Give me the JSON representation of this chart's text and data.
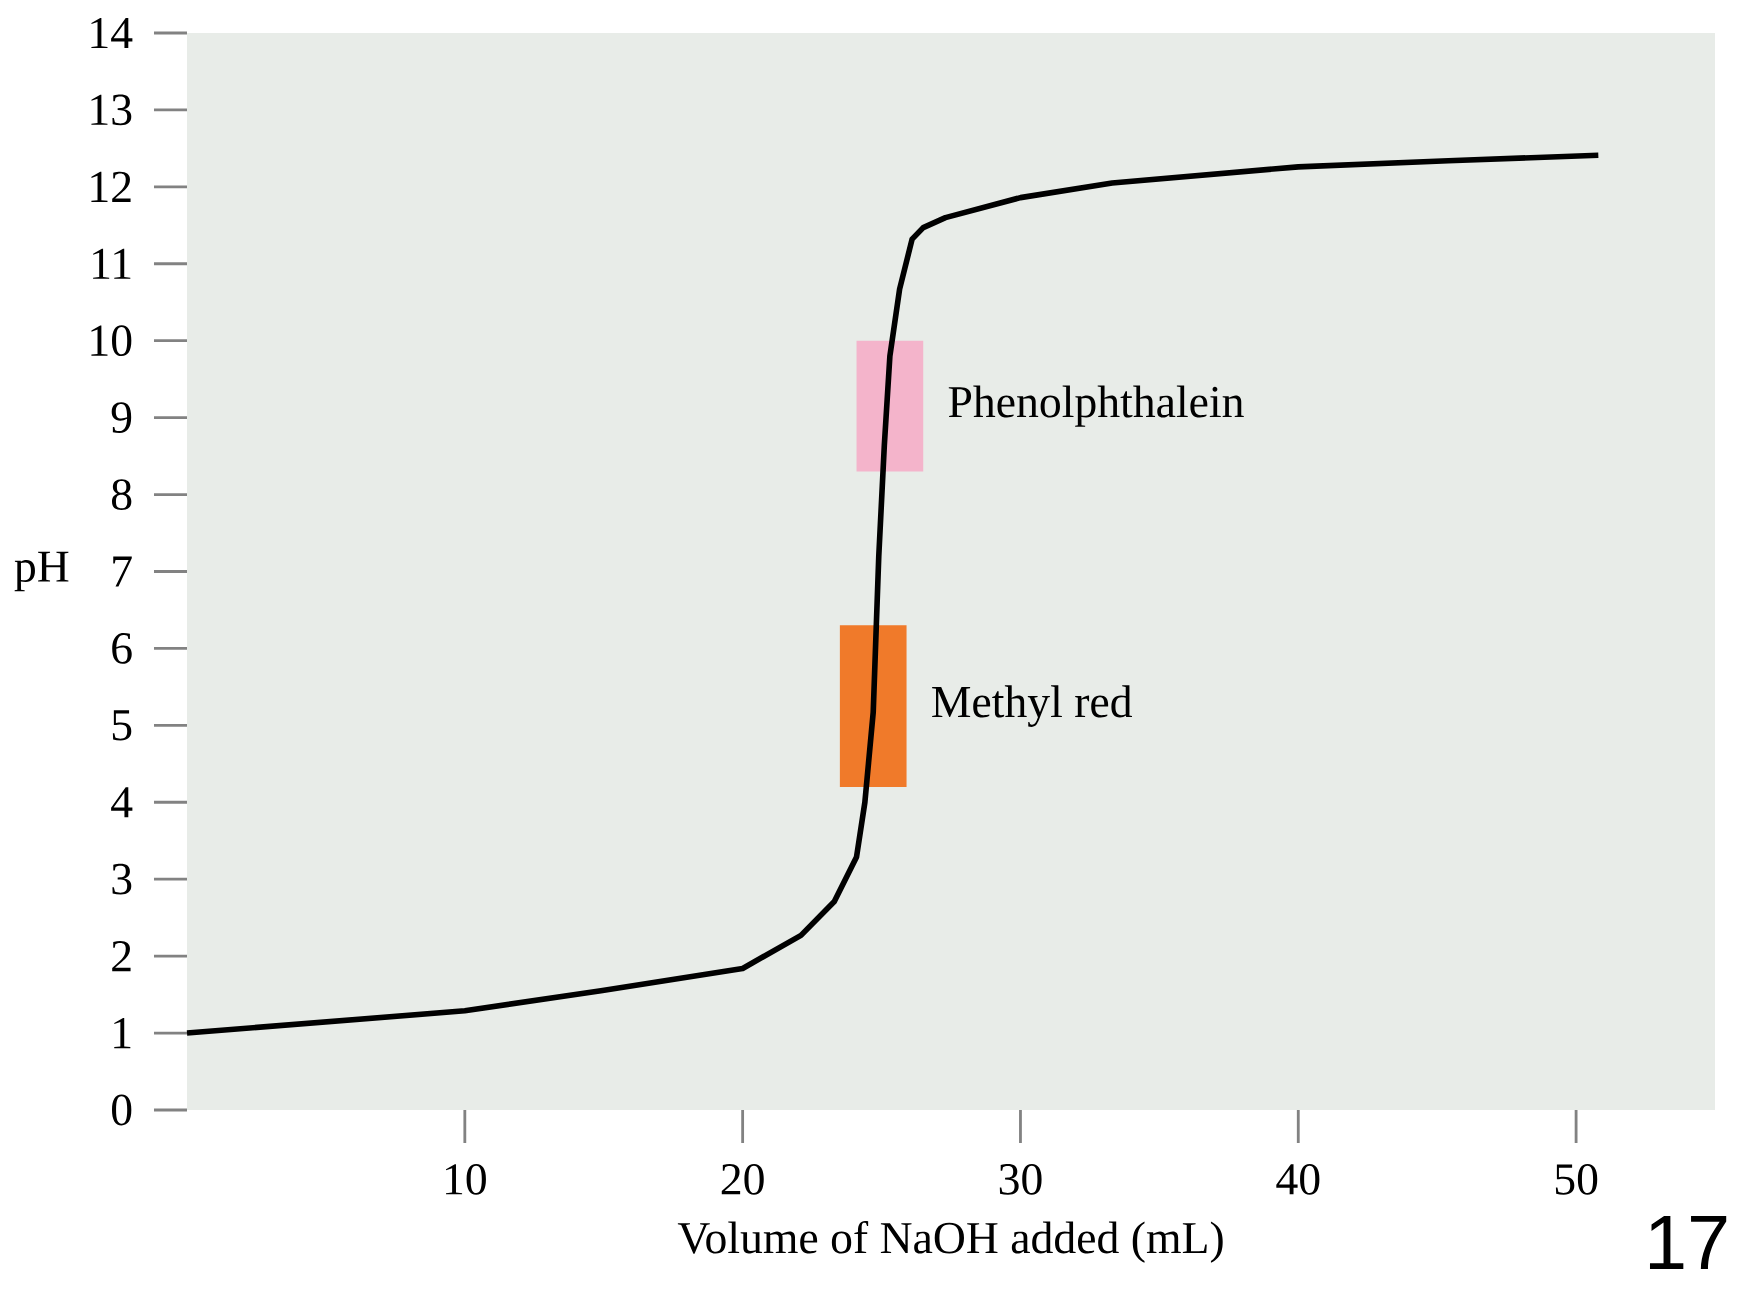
{
  "chart_data": {
    "type": "line",
    "xlabel": "Volume of NaOH added (mL)",
    "ylabel": "pH",
    "x": [
      0,
      10,
      14.9,
      20,
      22.1,
      23.3,
      24.1,
      24.4,
      24.7,
      24.9,
      25.1,
      25.3,
      25.65,
      26.1,
      26.5,
      27.3,
      30,
      33.3,
      40,
      45.4,
      50.8
    ],
    "series": [
      {
        "color": "#000000",
        "values": [
          1.0,
          1.29,
          1.55,
          1.84,
          2.27,
          2.71,
          3.29,
          4.0,
          5.17,
          7.2,
          8.64,
          9.8,
          10.67,
          11.32,
          11.47,
          11.6,
          11.86,
          12.05,
          12.26,
          12.34,
          12.41
        ]
      },
      {
        "type": "bar",
        "name": "Phenolphthalein",
        "color": "#f4b4cb",
        "x": [
          25.3
        ],
        "base": [
          8.3
        ],
        "values": [
          1.7
        ]
      },
      {
        "type": "bar",
        "name": "Methyl red",
        "color": "#f07a2a",
        "x": [
          24.7
        ],
        "base": [
          4.2
        ],
        "values": [
          2.1
        ]
      }
    ],
    "xlim": [
      0,
      55
    ],
    "ylim": [
      0,
      14
    ],
    "xticks": [
      10,
      20,
      30,
      40,
      50
    ],
    "yticks": [
      0,
      1,
      2,
      3,
      4,
      5,
      6,
      7,
      8,
      9,
      10,
      11,
      12,
      13,
      14
    ],
    "annotations": [
      "17"
    ]
  }
}
